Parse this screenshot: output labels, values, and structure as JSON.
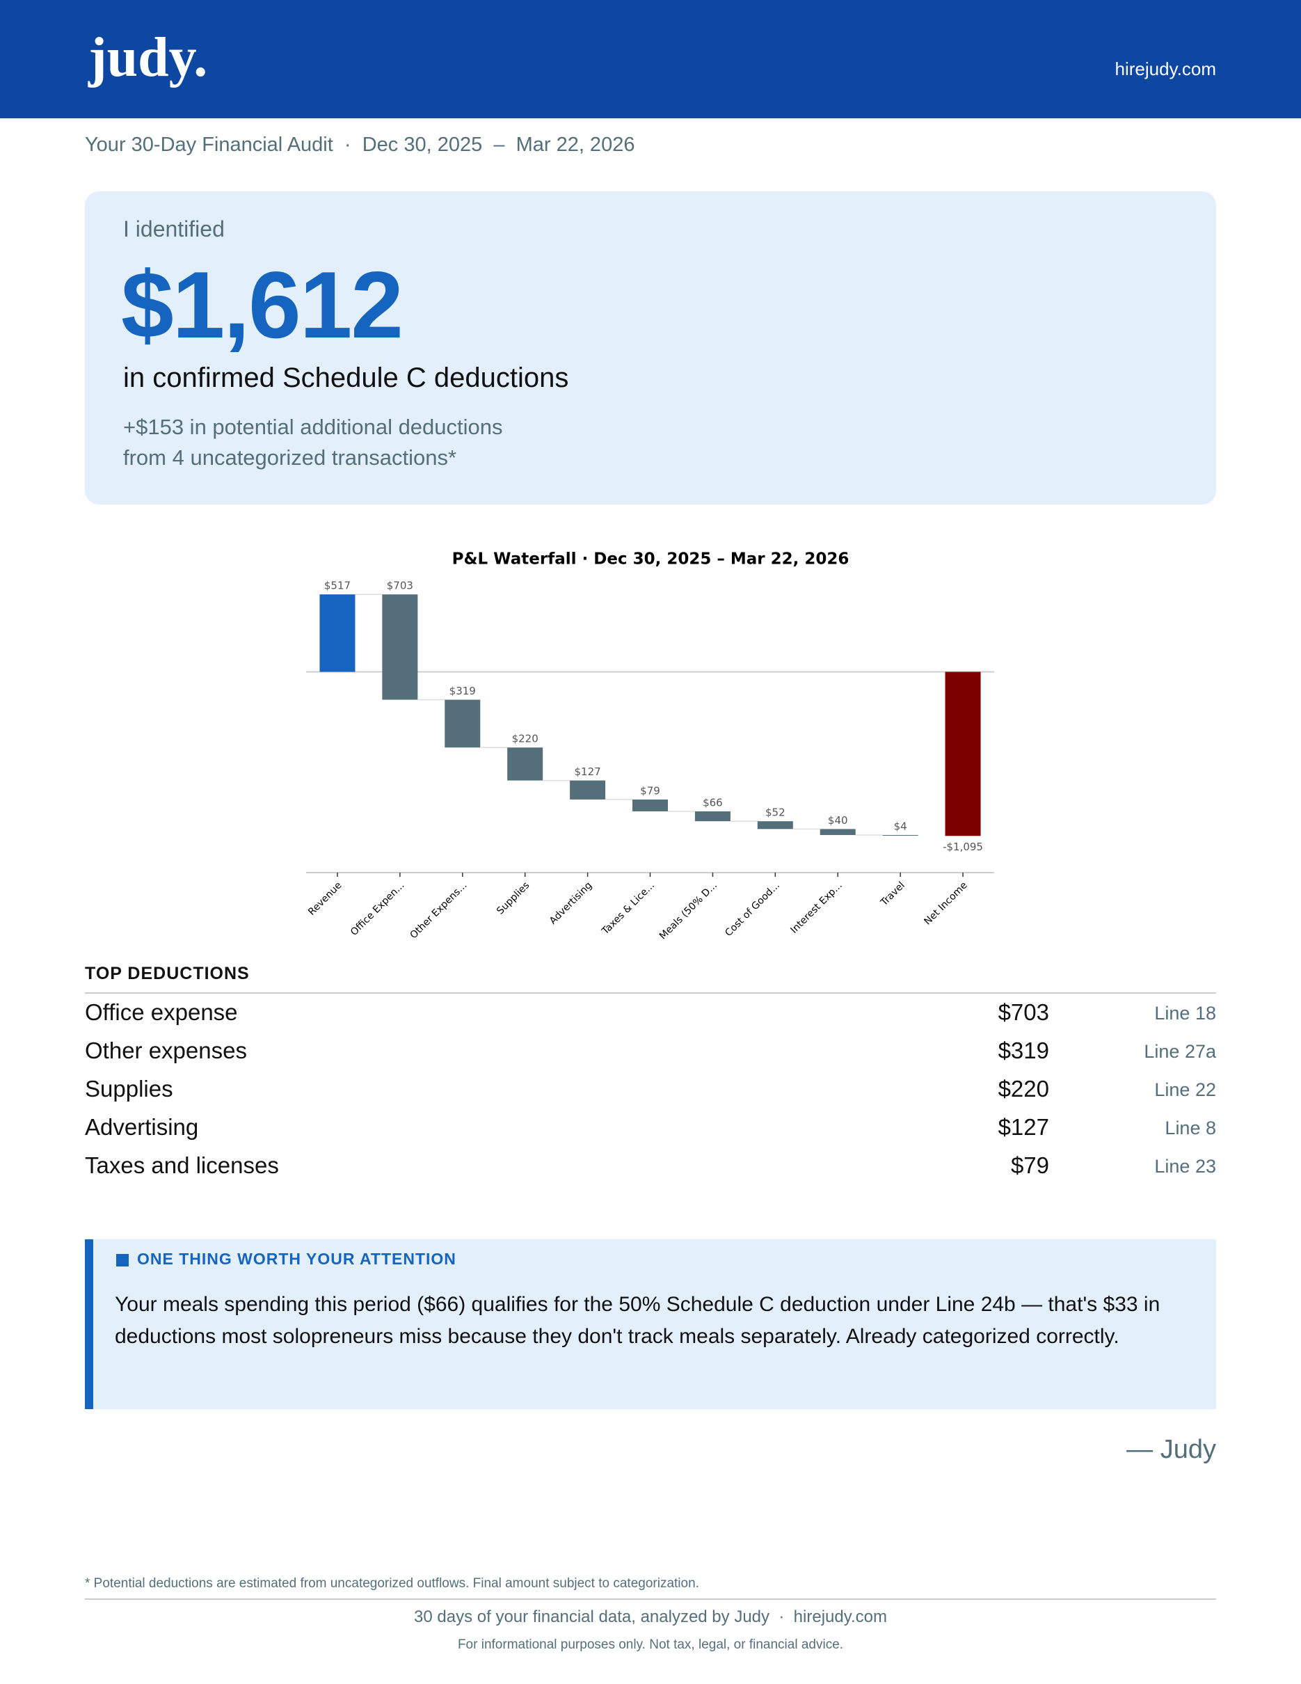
{
  "header": {
    "logo": "judy.",
    "url": "hirejudy.com"
  },
  "subtitle": "Your 30-Day Financial Audit  ·  Dec 30, 2025  –  Mar 22, 2026",
  "summary": {
    "intro": "I identified",
    "amount": "$1,612",
    "caption": "in confirmed Schedule C deductions",
    "potential": [
      "+$153 in potential additional deductions",
      "from 4 uncategorized transactions*"
    ]
  },
  "chart_data": {
    "type": "waterfall",
    "title": "P&L Waterfall  ·  Dec 30, 2025 – Mar 22, 2026",
    "categories": [
      "Revenue",
      "Office Expen...",
      "Other Expens...",
      "Supplies",
      "Advertising",
      "Taxes & Lice...",
      "Meals (50% D...",
      "Cost of Good...",
      "Interest Exp...",
      "Travel",
      "Net Income"
    ],
    "values": [
      517,
      703,
      319,
      220,
      127,
      79,
      66,
      52,
      40,
      4,
      -1095
    ],
    "value_labels": [
      "$517",
      "$703",
      "$319",
      "$220",
      "$127",
      "$79",
      "$66",
      "$52",
      "$40",
      "$4",
      "-$1,095"
    ],
    "colors": [
      "#1565c0",
      "#546e7a",
      "#546e7a",
      "#546e7a",
      "#546e7a",
      "#546e7a",
      "#546e7a",
      "#546e7a",
      "#546e7a",
      "#546e7a",
      "#7b0000"
    ],
    "ylim": [
      -1340,
      620
    ]
  },
  "top_deductions": {
    "title": "TOP DEDUCTIONS",
    "rows": [
      {
        "name": "Office expense",
        "amount": "$703",
        "line": "Line 18"
      },
      {
        "name": "Other expenses",
        "amount": "$319",
        "line": "Line 27a"
      },
      {
        "name": "Supplies",
        "amount": "$220",
        "line": "Line 22"
      },
      {
        "name": "Advertising",
        "amount": "$127",
        "line": "Line 8"
      },
      {
        "name": "Taxes and licenses",
        "amount": "$79",
        "line": "Line 23"
      }
    ]
  },
  "attention": {
    "title": "ONE THING WORTH YOUR ATTENTION",
    "body": "Your meals spending this period ($66) qualifies for the 50% Schedule C deduction under Line 24b — that's $33 in deductions most solopreneurs miss because they don't track meals separately. Already categorized correctly."
  },
  "signature": "— Judy",
  "footer": {
    "note": "* Potential deductions are estimated from uncategorized outflows. Final amount subject to categorization.",
    "line": "30 days of your financial data, analyzed by Judy  ·  hirejudy.com",
    "disclaimer": "For informational purposes only. Not tax, legal, or financial advice."
  }
}
